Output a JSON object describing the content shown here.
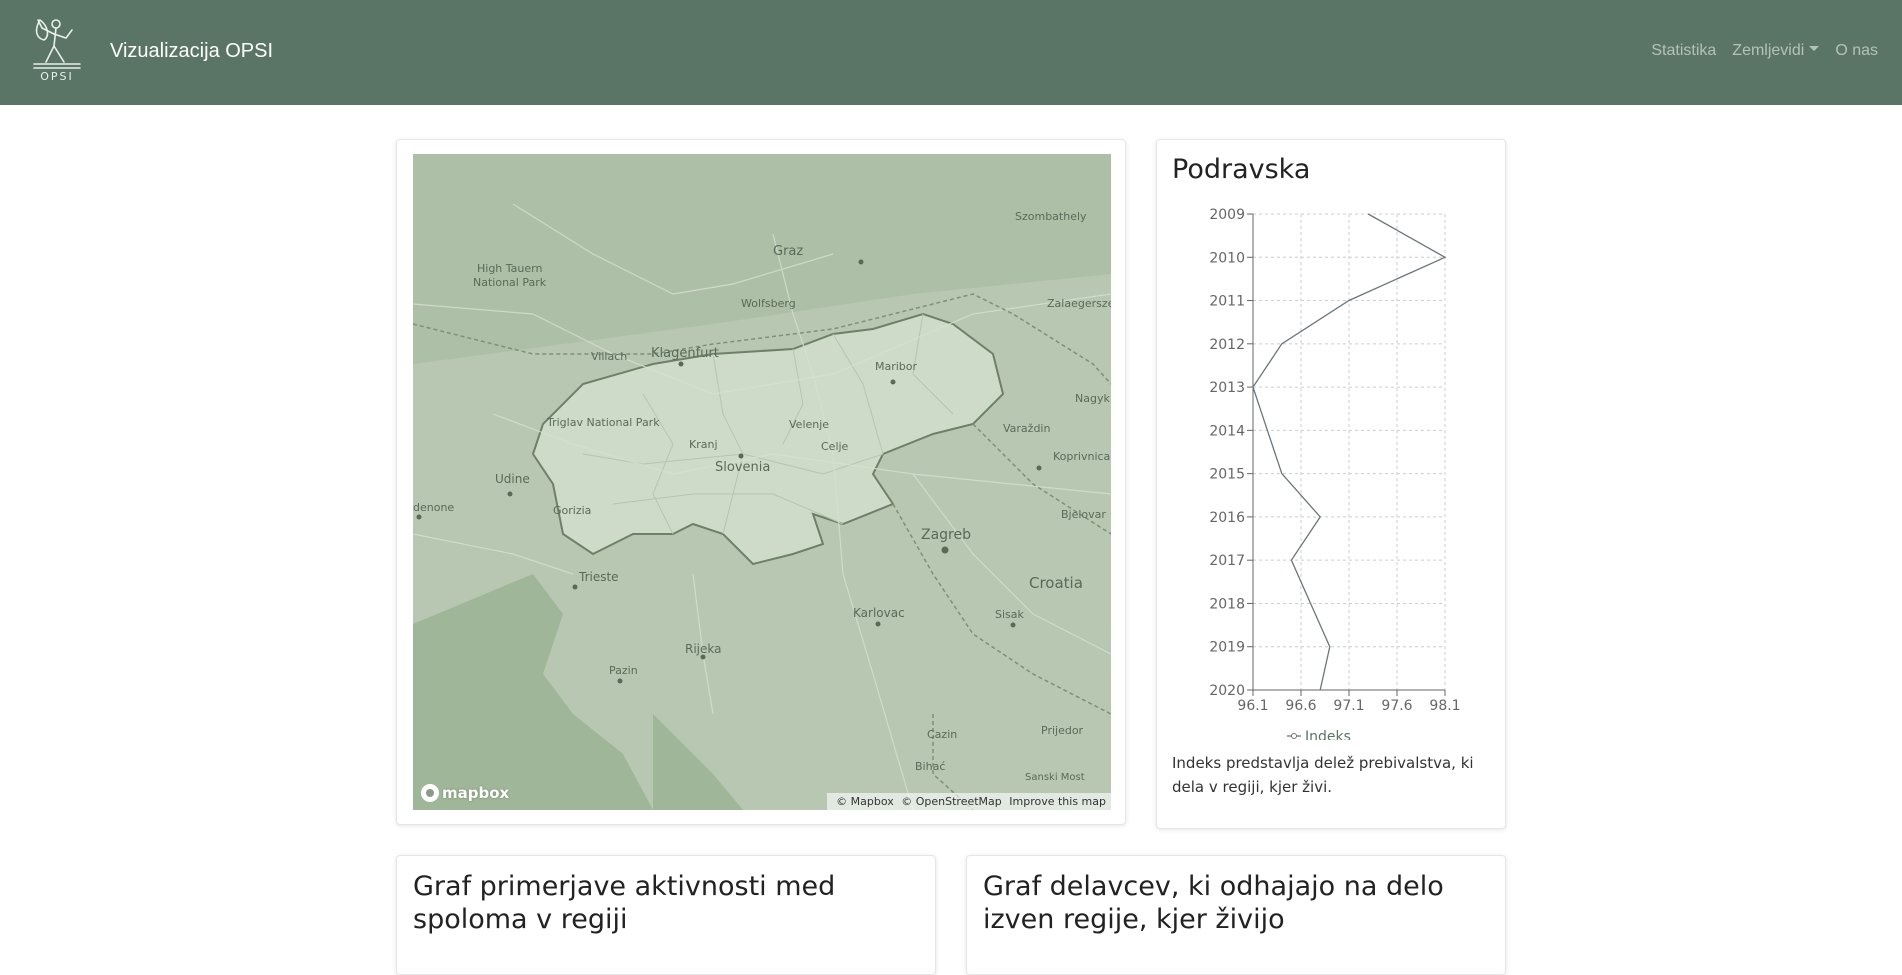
{
  "navbar": {
    "logo_text": "OPSI",
    "brand": "Vizualizacija OPSI",
    "links": {
      "statistika": "Statistika",
      "zemljevidi": "Zemljevidi",
      "o_nas": "O nas"
    },
    "bg_color": "#5a7565"
  },
  "map": {
    "labels": {
      "graz": "Graz",
      "szombathely": "Szombathely",
      "high_tauern": "High Tauern",
      "national_park": "National Park",
      "wolfsberg": "Wolfsberg",
      "zalaegerszeg": "Zalaegersze",
      "villach": "Villach",
      "klagenfurt": "Klagenfurt",
      "maribor": "Maribor",
      "nagyk": "Nagyk",
      "triglav": "Triglav National Park",
      "kranj": "Kranj",
      "velenje": "Velenje",
      "celje": "Celje",
      "varazdin": "Varaždin",
      "slovenia": "Slovenia",
      "koprivnica": "Koprivnica",
      "udine": "Udine",
      "pordenone": "denone",
      "gorizia": "Gorizia",
      "bjelovar": "Bjelovar",
      "zagreb": "Zagreb",
      "trieste": "Trieste",
      "croatia": "Croatia",
      "karlovac": "Karlovac",
      "sisak": "Sisak",
      "rijeka": "Rijeka",
      "pazin": "Pazin",
      "cazin": "Cazin",
      "prijedor": "Prijedor",
      "bihac": "Bihać",
      "sanski_most": "Sanski Most"
    },
    "logo": "mapbox",
    "attribution": [
      "© Mapbox",
      "© OpenStreetMap",
      "Improve this map"
    ]
  },
  "chart_card": {
    "title": "Podravska",
    "description": "Indeks predstavlja delež prebivalstva, ki dela v regiji, kjer živi."
  },
  "chart_data": {
    "type": "line",
    "orientation": "horizontal",
    "y_categories": [
      "2009",
      "2010",
      "2011",
      "2012",
      "2013",
      "2014",
      "2015",
      "2016",
      "2017",
      "2018",
      "2019",
      "2020"
    ],
    "series": [
      {
        "name": "Indeks",
        "values": [
          97.3,
          98.1,
          97.1,
          96.4,
          96.1,
          96.25,
          96.4,
          96.8,
          96.5,
          96.7,
          96.9,
          96.8
        ]
      }
    ],
    "x_ticks": [
      "96.1",
      "96.6",
      "97.1",
      "97.6",
      "98.1"
    ],
    "xlim": [
      96.1,
      98.1
    ],
    "grid": true,
    "grid_style": "dashed",
    "legend_position": "bottom",
    "line_color": "#6c757d"
  },
  "bottom_cards": {
    "card1_title": "Graf primerjave aktivnosti med spoloma v regiji",
    "card2_title": "Graf delavcev, ki odhajajo na delo izven regije, kjer živijo"
  }
}
